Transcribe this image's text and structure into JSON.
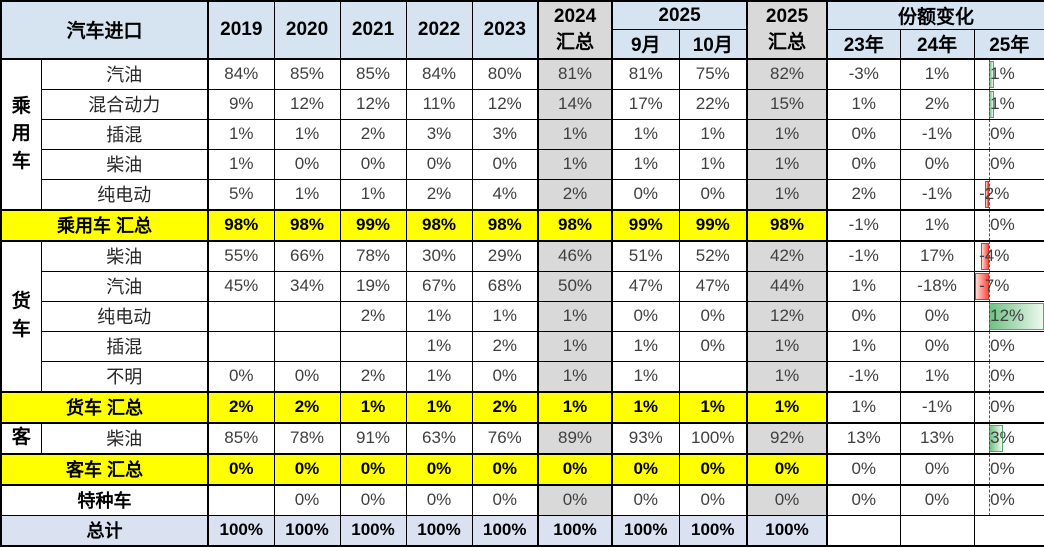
{
  "header": {
    "title": "汽车进口",
    "years": [
      "2019",
      "2020",
      "2021",
      "2022",
      "2023"
    ],
    "col_2024_total": {
      "line1": "2024",
      "line2": "汇总"
    },
    "col_2025_group": "2025",
    "months": [
      "9月",
      "10月"
    ],
    "col_2025_total": {
      "line1": "2025",
      "line2": "汇总"
    },
    "share_change": "份额变化",
    "share_years": [
      "23年",
      "24年",
      "25年"
    ]
  },
  "colors": {
    "header_blue": "#d6e4f2",
    "summary_gray": "#d9d9d9",
    "subtotal_yellow": "#ffff00",
    "total_blue": "#dae1f0",
    "bar_positive_green": "#6fc181",
    "bar_negative_red": "#ff4b40",
    "bar_axis_dark_red": "#953734"
  },
  "chart_data": {
    "type": "table",
    "title": "汽车进口",
    "columns": [
      "2019",
      "2020",
      "2021",
      "2022",
      "2023",
      "2024汇总",
      "2025 9月",
      "2025 10月",
      "2025汇总",
      "份额变化 23年",
      "份额变化 24年",
      "份额变化 25年"
    ],
    "bar_column": "份额变化 25年",
    "bar_axis_position_pct": 21,
    "bar_scale": {
      "max_positive": 12,
      "min_negative": -7
    }
  },
  "rows": [
    {
      "type": "data",
      "group": "乘用车",
      "groupSpan": 5,
      "label": "汽油",
      "cells": [
        "84%",
        "85%",
        "85%",
        "84%",
        "80%",
        "81%",
        "81%",
        "75%",
        "82%",
        "-3%",
        "1%",
        "1%"
      ],
      "bar": 1
    },
    {
      "type": "data",
      "label": "混合动力",
      "cells": [
        "9%",
        "12%",
        "12%",
        "11%",
        "12%",
        "14%",
        "17%",
        "22%",
        "15%",
        "1%",
        "2%",
        "1%"
      ],
      "bar": 1
    },
    {
      "type": "data",
      "label": "插混",
      "cells": [
        "1%",
        "1%",
        "2%",
        "3%",
        "3%",
        "1%",
        "1%",
        "1%",
        "1%",
        "0%",
        "-1%",
        "0%"
      ],
      "bar": 0
    },
    {
      "type": "data",
      "label": "柴油",
      "cells": [
        "1%",
        "0%",
        "0%",
        "0%",
        "0%",
        "1%",
        "1%",
        "1%",
        "1%",
        "0%",
        "0%",
        "0%"
      ],
      "bar": 0
    },
    {
      "type": "data",
      "label": "纯电动",
      "cells": [
        "5%",
        "1%",
        "1%",
        "2%",
        "4%",
        "2%",
        "0%",
        "0%",
        "1%",
        "2%",
        "-1%",
        "-2%"
      ],
      "bar": -2
    },
    {
      "type": "subtotal",
      "label": "乘用车 汇总",
      "cells": [
        "98%",
        "98%",
        "99%",
        "98%",
        "98%",
        "98%",
        "99%",
        "99%",
        "98%",
        "-1%",
        "1%",
        "0%"
      ],
      "bar": 0
    },
    {
      "type": "data",
      "group": "货车",
      "groupSpan": 5,
      "label": "柴油",
      "cells": [
        "55%",
        "66%",
        "78%",
        "30%",
        "29%",
        "46%",
        "51%",
        "52%",
        "42%",
        "-1%",
        "17%",
        "-4%"
      ],
      "bar": -4
    },
    {
      "type": "data",
      "label": "汽油",
      "cells": [
        "45%",
        "34%",
        "19%",
        "67%",
        "68%",
        "50%",
        "47%",
        "47%",
        "44%",
        "1%",
        "-18%",
        "-7%"
      ],
      "bar": -7
    },
    {
      "type": "data",
      "label": "纯电动",
      "cells": [
        "",
        "",
        "2%",
        "1%",
        "1%",
        "1%",
        "0%",
        "0%",
        "12%",
        "0%",
        "0%",
        "12%"
      ],
      "bar": 12
    },
    {
      "type": "data",
      "label": "插混",
      "cells": [
        "",
        "",
        "",
        "1%",
        "2%",
        "1%",
        "1%",
        "0%",
        "1%",
        "1%",
        "0%",
        "0%"
      ],
      "bar": 0
    },
    {
      "type": "data",
      "label": "不明",
      "cells": [
        "0%",
        "0%",
        "2%",
        "1%",
        "0%",
        "1%",
        "1%",
        "",
        "1%",
        "-1%",
        "1%",
        "0%"
      ],
      "bar": 0
    },
    {
      "type": "subtotal",
      "label": "货车 汇总",
      "cells": [
        "2%",
        "2%",
        "1%",
        "1%",
        "2%",
        "1%",
        "1%",
        "1%",
        "1%",
        "1%",
        "-1%",
        "0%"
      ],
      "bar": 0
    },
    {
      "type": "data",
      "group": "客",
      "groupSpan": 1,
      "label": "柴油",
      "cells": [
        "85%",
        "78%",
        "91%",
        "63%",
        "76%",
        "89%",
        "93%",
        "100%",
        "92%",
        "13%",
        "13%",
        "3%"
      ],
      "bar": 3
    },
    {
      "type": "subtotal",
      "label": "客车 汇总",
      "cells": [
        "0%",
        "0%",
        "0%",
        "0%",
        "0%",
        "0%",
        "0%",
        "0%",
        "0%",
        "0%",
        "0%",
        "0%"
      ],
      "bar": 0
    },
    {
      "type": "special",
      "label": "特种车",
      "cells": [
        "",
        "0%",
        "0%",
        "0%",
        "0%",
        "0%",
        "0%",
        "0%",
        "0%",
        "0%",
        "0%",
        "0%"
      ],
      "bar": 0
    },
    {
      "type": "total",
      "label": "总计",
      "cells": [
        "100%",
        "100%",
        "100%",
        "100%",
        "100%",
        "100%",
        "100%",
        "100%",
        "100%",
        "",
        "",
        ""
      ],
      "bar": null
    }
  ]
}
